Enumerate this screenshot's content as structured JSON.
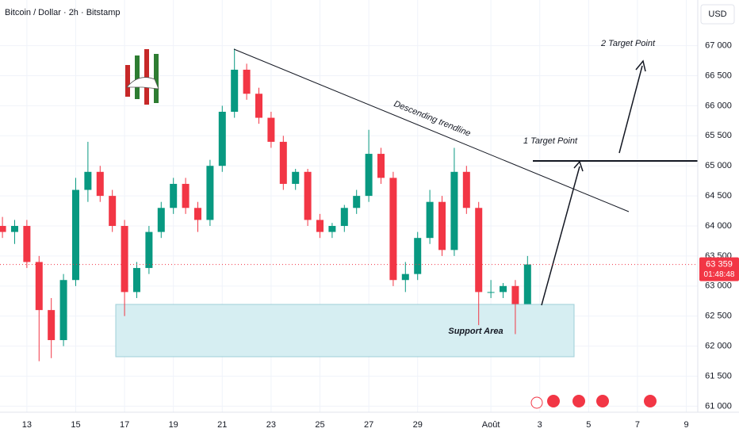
{
  "chart_data": {
    "type": "candlestick",
    "title": "Bitcoin / Dollar · 2h · Bitstamp",
    "currency": "USD",
    "x": [
      12,
      12.5,
      13,
      13.5,
      14,
      14.5,
      15,
      15.5,
      16,
      16.5,
      17,
      17.5,
      18,
      18.5,
      19,
      19.5,
      20,
      20.5,
      21,
      21.5,
      22,
      22.5,
      23,
      23.5,
      24,
      24.5,
      25,
      25.5,
      26,
      26.5,
      27,
      27.5,
      28,
      28.5,
      29,
      29.5,
      30,
      30.5,
      31,
      31.5,
      32,
      32.5,
      33,
      33.5
    ],
    "open": [
      64000,
      63900,
      64000,
      63400,
      62600,
      62100,
      63100,
      64600,
      64900,
      64500,
      64000,
      62900,
      63300,
      63900,
      64300,
      64700,
      64300,
      64100,
      65000,
      65900,
      66600,
      66200,
      65800,
      65400,
      64700,
      64900,
      64100,
      63900,
      64000,
      64300,
      64500,
      65200,
      64800,
      63100,
      63200,
      63800,
      64400,
      63600,
      64900,
      64300,
      62900,
      62900,
      63000,
      62700
    ],
    "high": [
      64150,
      64100,
      64100,
      63500,
      62800,
      63200,
      64800,
      65400,
      65000,
      64600,
      64100,
      63400,
      64000,
      64400,
      64800,
      64800,
      64400,
      65100,
      66000,
      66950,
      66700,
      66300,
      65900,
      65500,
      64950,
      64950,
      64200,
      64050,
      64350,
      64600,
      65600,
      65300,
      64900,
      63400,
      63900,
      64600,
      64500,
      65300,
      65000,
      64400,
      63100,
      63050,
      63100,
      63500
    ],
    "low": [
      63800,
      63700,
      63300,
      61750,
      61800,
      62000,
      63000,
      64400,
      64400,
      63900,
      62500,
      62800,
      63200,
      63800,
      64200,
      64200,
      63900,
      64000,
      64900,
      65800,
      66100,
      65700,
      65300,
      64600,
      64600,
      64000,
      63800,
      63800,
      63900,
      64200,
      64400,
      64700,
      63000,
      62900,
      63100,
      63700,
      63500,
      63500,
      64200,
      62350,
      62800,
      62800,
      62200,
      62700
    ],
    "close": [
      63900,
      64000,
      63400,
      62600,
      62100,
      63100,
      64600,
      64900,
      64500,
      64000,
      62900,
      63300,
      63900,
      64300,
      64700,
      64300,
      64100,
      65000,
      65900,
      66600,
      66200,
      65800,
      65400,
      64700,
      64900,
      64100,
      63900,
      64000,
      64300,
      64500,
      65200,
      64800,
      63100,
      63200,
      63800,
      64400,
      63600,
      64900,
      64300,
      62900,
      62900,
      63000,
      62700,
      63359
    ],
    "up_color": "#089981",
    "down_color": "#f23645",
    "xlim": [
      11.9,
      40.47
    ],
    "xticks": [
      13,
      15,
      17,
      19,
      21,
      23,
      25,
      27,
      29,
      {
        "value": 32,
        "label": "Août"
      },
      {
        "value": 34,
        "label": "3"
      },
      {
        "value": 36,
        "label": "5"
      },
      {
        "value": 38,
        "label": "7"
      },
      {
        "value": 40,
        "label": "9"
      }
    ],
    "ylim": [
      60900,
      67760
    ],
    "yticks": [
      {
        "value": 61000,
        "label": "61 000"
      },
      {
        "value": 61500,
        "label": "61 500"
      },
      {
        "value": 62000,
        "label": "62 000"
      },
      {
        "value": 62500,
        "label": "62 500"
      },
      {
        "value": 63000,
        "label": "63 000"
      },
      {
        "value": 63500,
        "label": "63 500"
      },
      {
        "value": 64000,
        "label": "64 000"
      },
      {
        "value": 64500,
        "label": "64 500"
      },
      {
        "value": 65000,
        "label": "65 000"
      },
      {
        "value": 65500,
        "label": "65 500"
      },
      {
        "value": 66000,
        "label": "66 000"
      },
      {
        "value": 66500,
        "label": "66 500"
      },
      {
        "value": 67000,
        "label": "67 000"
      }
    ],
    "grid": true,
    "last_price": {
      "value": 63359,
      "label": "63 359"
    },
    "countdown": "01:48:48",
    "annotations": {
      "trendline": "Descending trendline",
      "target1": "1 Target Point",
      "target2": "2 Target Point",
      "support": "Support Area"
    }
  }
}
